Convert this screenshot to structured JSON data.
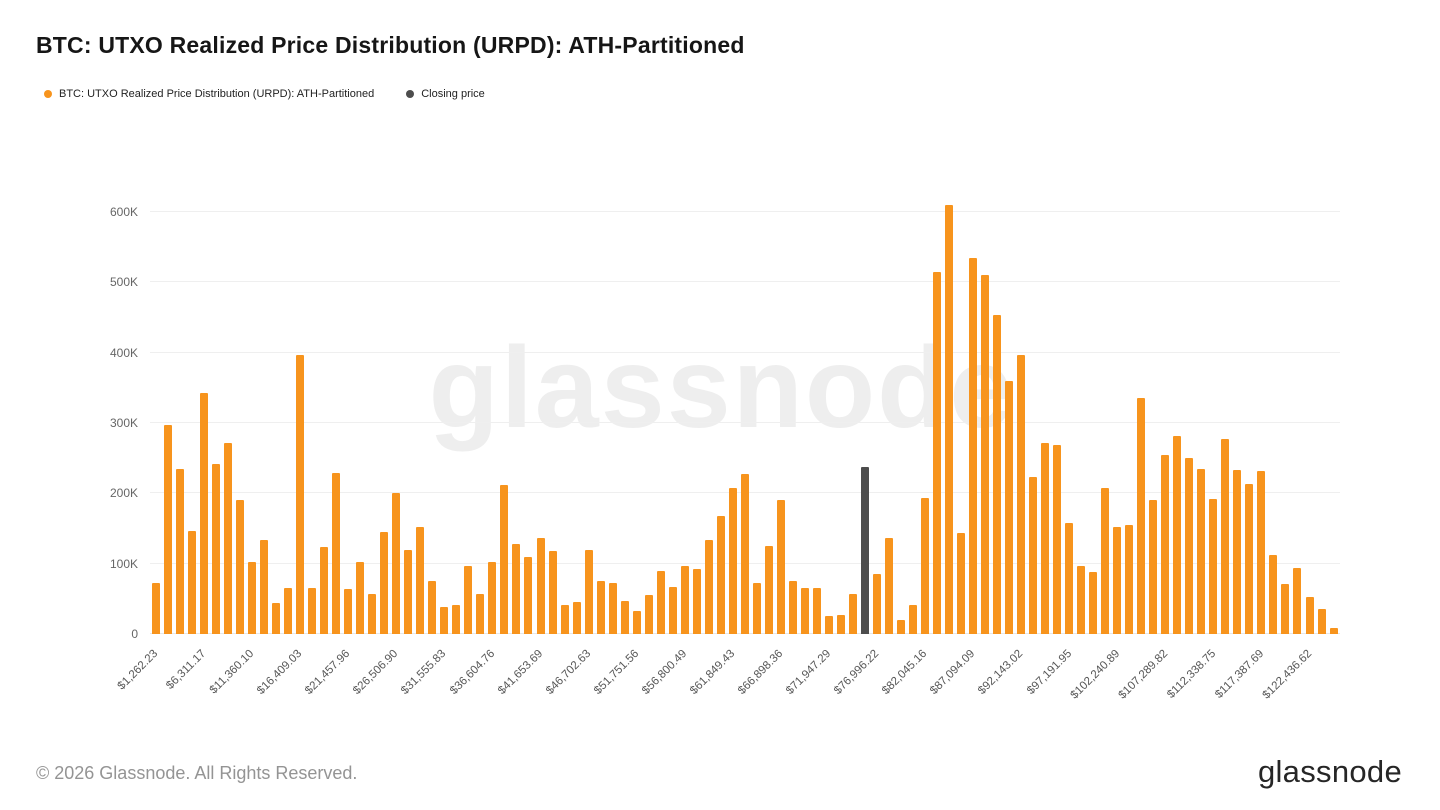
{
  "title": "BTC: UTXO Realized Price Distribution (URPD): ATH-Partitioned",
  "legend": {
    "items": [
      {
        "label": "BTC: UTXO Realized Price Distribution (URPD): ATH-Partitioned",
        "color": "#F7941D"
      },
      {
        "label": "Closing price",
        "color": "#4D4D4D"
      }
    ]
  },
  "watermark": "glassnode",
  "footer": {
    "copyright": "© 2026 Glassnode. All Rights Reserved.",
    "logo": "glassnode"
  },
  "chart_data": {
    "type": "bar",
    "title": "BTC: UTXO Realized Price Distribution (URPD): ATH-Partitioned",
    "xlabel": "",
    "ylabel": "",
    "grid": "horizontal",
    "legend_position": "top-left",
    "y_tick_labels": [
      "0",
      "100K",
      "200K",
      "300K",
      "400K",
      "500K",
      "600K"
    ],
    "y_ticks_k": [
      0,
      100,
      200,
      300,
      400,
      500,
      600
    ],
    "ylim_k": [
      0,
      631
    ],
    "x_tick_every": 4,
    "x_tick_labels": [
      "$1,262.23",
      "$6,311.17",
      "$11,360.10",
      "$16,409.03",
      "$21,457.96",
      "$26,506.90",
      "$31,555.83",
      "$36,604.76",
      "$41,653.69",
      "$46,702.63",
      "$51,751.56",
      "$56,800.49",
      "$61,849.43",
      "$66,898.36",
      "$71,947.29",
      "$76,996.22",
      "$82,045.16",
      "$87,094.09",
      "$92,143.02",
      "$97,191.95",
      "$102,240.89",
      "$107,289.82",
      "$112,338.75",
      "$117,387.69",
      "$122,436.62"
    ],
    "values_k": [
      72,
      297,
      234,
      146,
      343,
      242,
      272,
      190,
      103,
      134,
      44,
      65,
      396,
      65,
      123,
      229,
      64,
      102,
      57,
      145,
      200,
      119,
      152,
      76,
      38,
      41,
      97,
      57,
      103,
      212,
      128,
      110,
      136,
      118,
      41,
      45,
      119,
      75,
      72,
      47,
      32,
      55,
      89,
      67,
      97,
      92,
      133,
      168,
      207,
      228,
      72,
      125,
      190,
      75,
      66,
      65,
      26,
      27,
      57,
      238,
      85,
      136,
      20,
      41,
      193,
      514,
      609,
      144,
      535,
      510,
      453,
      360,
      396,
      223,
      271,
      268,
      158,
      96,
      88,
      207,
      152,
      155,
      335,
      191,
      255,
      281,
      250,
      235,
      192,
      277,
      233,
      213,
      232,
      112,
      71,
      94,
      52,
      35,
      8
    ],
    "closing_price_index": 59,
    "bar_color": "#F7941D",
    "closing_price_color": "#4D4D4D"
  }
}
